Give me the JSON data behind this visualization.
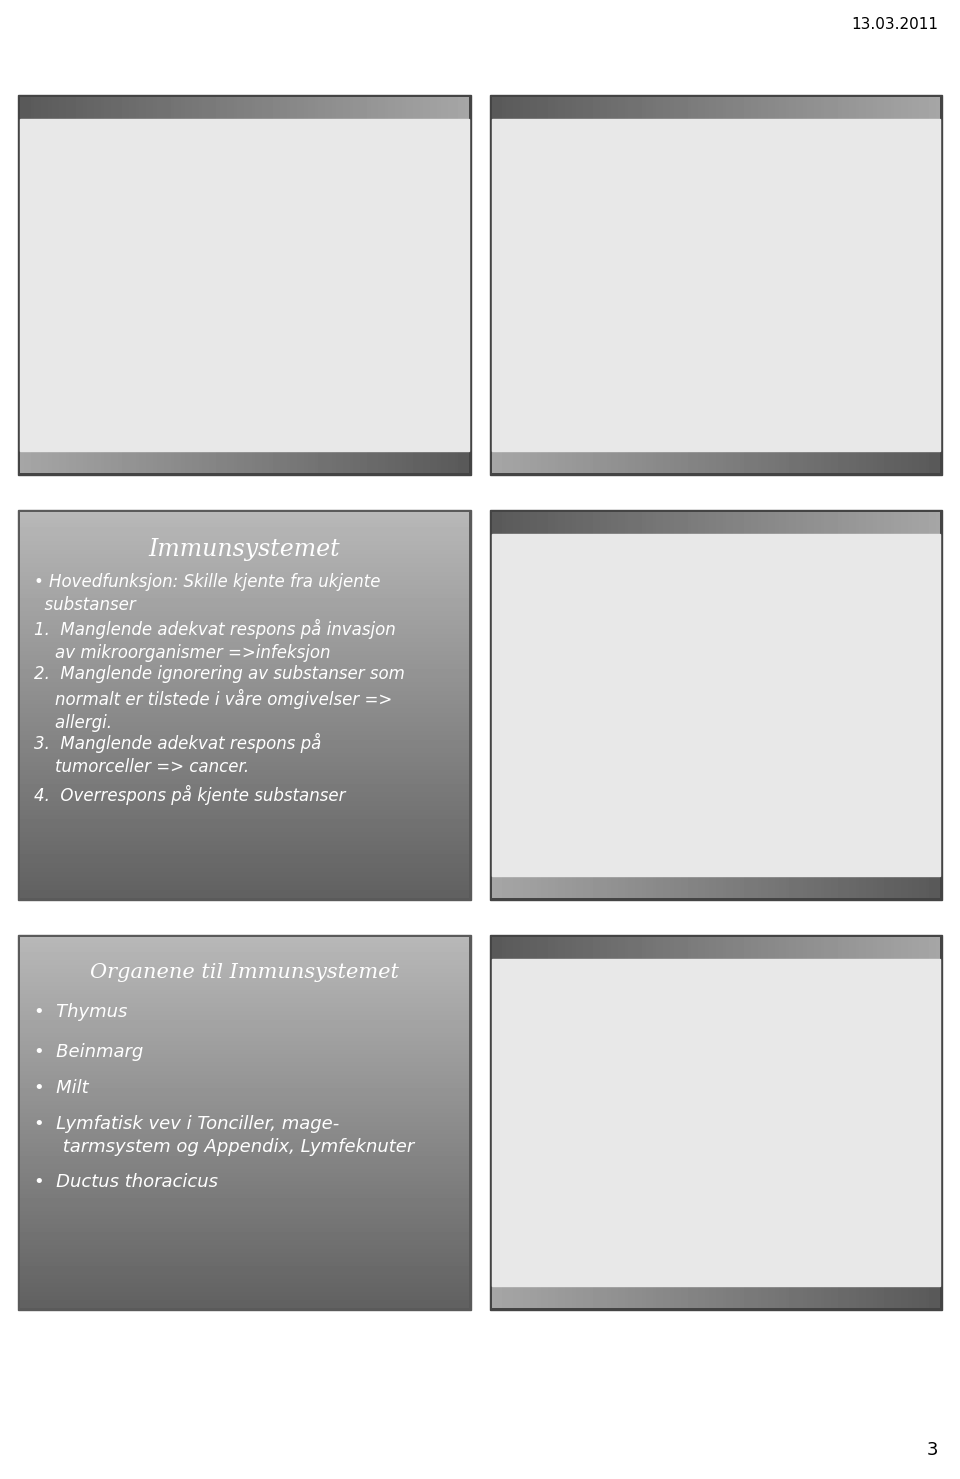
{
  "date_text": "13.03.2011",
  "page_number": "3",
  "row1_left_title": "Immunsystemet",
  "row1_left_bullets": [
    "• Hovedfunksjon: Skille kjente fra ukjente\n  substanser",
    "1.  Manglende adekvat respons på invasjon\n    av mikroorganismer =>infeksjon",
    "2.  Manglende ignorering av substanser som\n    normalt er tilstede i våre omgivelser =>\n    allergi.",
    "3.  Manglende adekvat respons på\n    tumorceller => cancer.",
    "4.  Overrespons på kjente substanser"
  ],
  "row2_left_title": "Organene til Immunsystemet",
  "row2_left_bullets": [
    "•  Thymus",
    "•  Beinmarg",
    "•  Milt",
    "•  Lymfatisk vev i Tonciller, mage-\n     tarmsystem og Appendix, Lymfeknuter",
    "•  Ductus thoracicus"
  ],
  "grad_dark": "#707070",
  "grad_light": "#c8c8c8",
  "panel_inner_top": "#888888",
  "panel_inner_mid": "#aaaaaa",
  "panel_inner_light": "#d0d0d0",
  "text_color": "#000000",
  "white": "#ffffff",
  "img_bg": "#e8e8e8"
}
